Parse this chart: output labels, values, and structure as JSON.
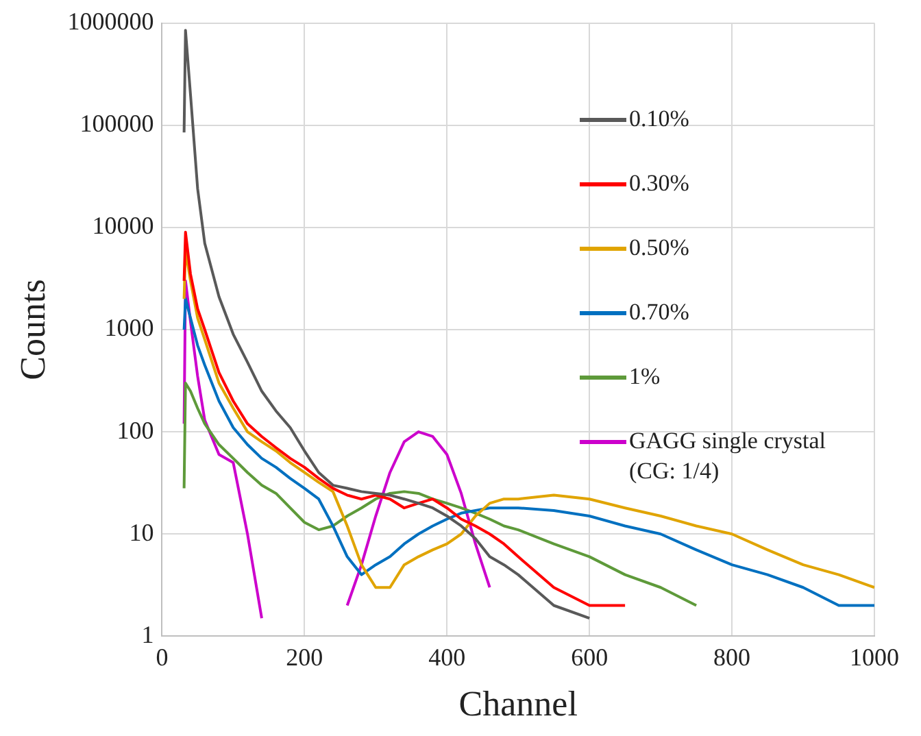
{
  "chart_data": {
    "type": "line",
    "xlabel": "Channel",
    "ylabel": "Counts",
    "x": [
      31,
      33,
      40,
      50,
      60,
      80,
      100,
      120,
      140,
      160,
      180,
      200,
      220,
      240,
      260,
      280,
      300,
      320,
      340,
      360,
      380,
      400,
      420,
      440,
      460,
      480,
      500,
      550,
      600,
      650,
      700,
      750,
      800,
      850,
      900,
      950,
      1000
    ],
    "series": [
      {
        "name": "0.10%",
        "color": "#595959",
        "values": [
          85000,
          850000,
          200000,
          24000,
          7000,
          2100,
          900,
          480,
          250,
          160,
          110,
          65,
          40,
          30,
          28,
          26,
          25,
          24,
          22,
          20,
          18,
          15,
          12,
          9,
          6,
          5,
          4,
          2,
          1.5,
          null,
          null,
          null,
          null,
          null,
          null,
          null,
          null
        ]
      },
      {
        "name": "0.30%",
        "color": "#ff0000",
        "values": [
          3000,
          9000,
          3500,
          1600,
          1000,
          380,
          200,
          120,
          90,
          70,
          55,
          45,
          35,
          28,
          24,
          22,
          24,
          22,
          18,
          20,
          22,
          18,
          14,
          12,
          10,
          8,
          6,
          3,
          2,
          2,
          null,
          null,
          null,
          null,
          null,
          null,
          null
        ]
      },
      {
        "name": "0.50%",
        "color": "#e0a400",
        "values": [
          2000,
          6000,
          3000,
          1300,
          800,
          300,
          170,
          100,
          80,
          65,
          50,
          40,
          32,
          26,
          12,
          5,
          3,
          3,
          5,
          6,
          7,
          8,
          10,
          15,
          20,
          22,
          22,
          24,
          22,
          18,
          15,
          12,
          10,
          7,
          5,
          4,
          3
        ]
      },
      {
        "name": "0.70%",
        "color": "#0070c0",
        "values": [
          1000,
          2000,
          1300,
          700,
          450,
          200,
          110,
          75,
          55,
          45,
          35,
          28,
          22,
          12,
          6,
          4,
          5,
          6,
          8,
          10,
          12,
          14,
          16,
          17,
          18,
          18,
          18,
          17,
          15,
          12,
          10,
          7,
          5,
          4,
          3,
          2,
          2
        ]
      },
      {
        "name": "1%",
        "color": "#5e9a3a",
        "values": [
          28,
          300,
          250,
          170,
          120,
          75,
          55,
          40,
          30,
          25,
          18,
          13,
          11,
          12,
          15,
          18,
          22,
          25,
          26,
          25,
          22,
          20,
          18,
          16,
          14,
          12,
          11,
          8,
          6,
          4,
          3,
          2,
          null,
          null,
          null,
          null,
          null
        ]
      },
      {
        "name": "GAGG single crystal (CG: 1/4)",
        "color": "#cc00cc",
        "values": [
          120,
          3000,
          1200,
          350,
          130,
          60,
          50,
          10,
          1.5,
          null,
          null,
          null,
          null,
          null,
          2,
          5,
          15,
          40,
          80,
          100,
          90,
          60,
          25,
          8,
          3,
          null,
          null,
          null,
          null,
          null,
          null,
          null,
          null,
          null,
          null,
          null,
          null
        ]
      }
    ],
    "xlim": [
      0,
      1000
    ],
    "xticks": [
      0,
      200,
      400,
      600,
      800,
      1000
    ],
    "ylim": [
      1,
      1000000
    ],
    "yticks": [
      1,
      10,
      100,
      1000,
      10000,
      100000,
      1000000
    ],
    "log": "y",
    "grid": true,
    "legend": "right",
    "marker": "none",
    "line_style": "solid"
  }
}
